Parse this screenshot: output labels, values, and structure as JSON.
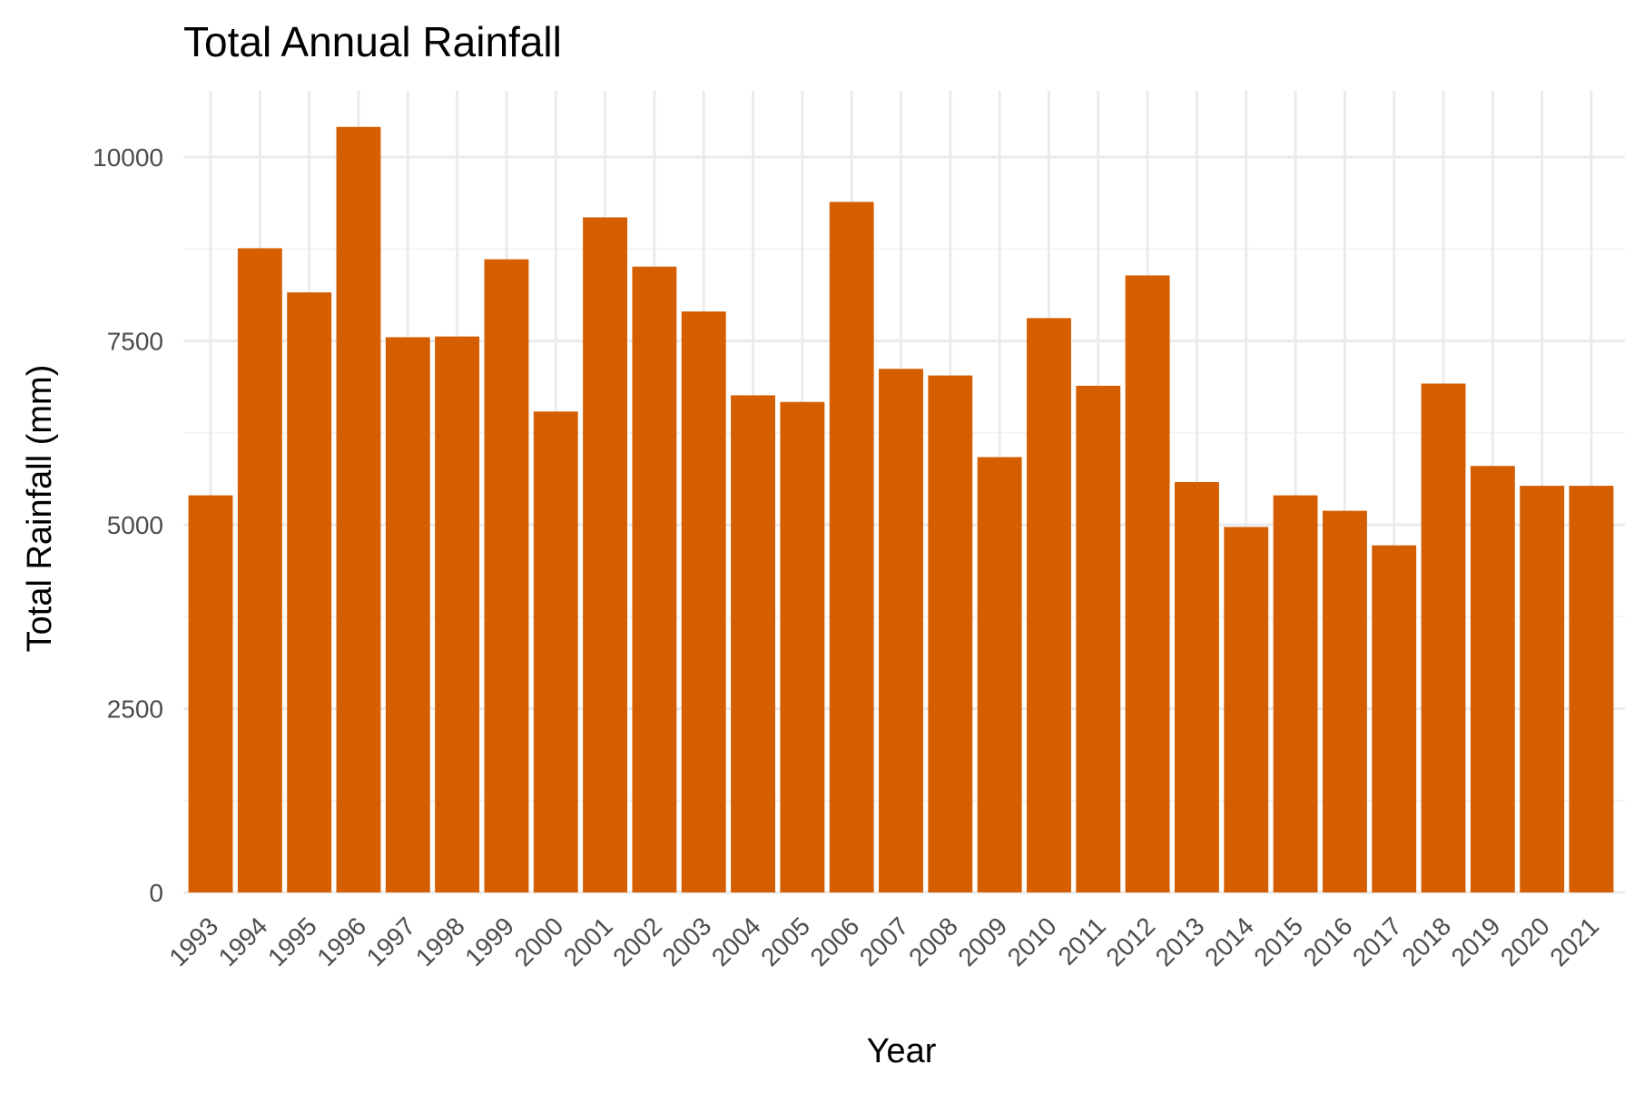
{
  "chart_data": {
    "type": "bar",
    "title": "Total Annual Rainfall",
    "xlabel": "Year",
    "ylabel": "Total Rainfall (mm)",
    "categories": [
      "1993",
      "1994",
      "1995",
      "1996",
      "1997",
      "1998",
      "1999",
      "2000",
      "2001",
      "2002",
      "2003",
      "2004",
      "2005",
      "2006",
      "2007",
      "2008",
      "2009",
      "2010",
      "2011",
      "2012",
      "2013",
      "2014",
      "2015",
      "2016",
      "2017",
      "2018",
      "2019",
      "2020",
      "2021"
    ],
    "values": [
      5400,
      8760,
      8160,
      10410,
      7550,
      7560,
      8610,
      6540,
      9180,
      8510,
      7900,
      6760,
      6670,
      9390,
      7120,
      7030,
      5920,
      7810,
      6890,
      8390,
      5580,
      4970,
      5400,
      5190,
      4720,
      6920,
      5800,
      5530,
      5530
    ],
    "yticks": [
      0,
      2500,
      5000,
      7500,
      10000
    ],
    "ylim": [
      0,
      10900
    ],
    "grid": true,
    "legend": "none",
    "bar_color": "#d55e00"
  }
}
